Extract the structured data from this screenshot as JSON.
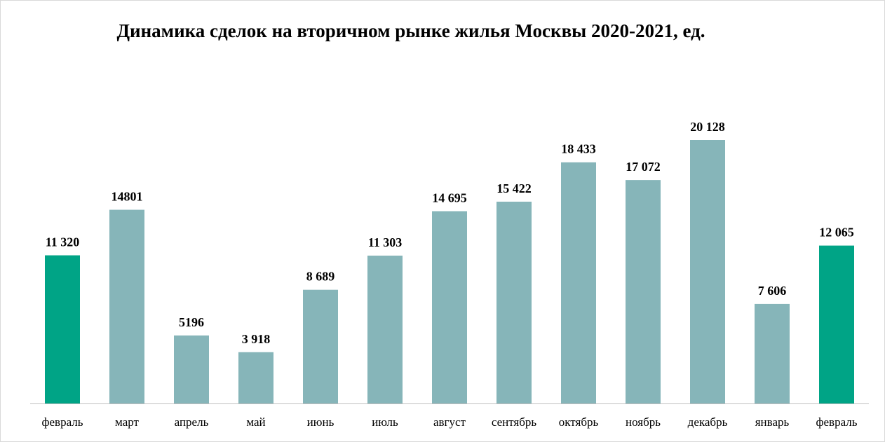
{
  "chart_data": {
    "type": "bar",
    "title": "Динамика сделок на вторичном рынке жилья Москвы 2020-2021, ед.",
    "categories": [
      "февраль",
      "март",
      "апрель",
      "май",
      "июнь",
      "июль",
      "август",
      "сентябрь",
      "октябрь",
      "ноябрь",
      "декабрь",
      "январь",
      "февраль"
    ],
    "values": [
      11320,
      14801,
      5196,
      3918,
      8689,
      11303,
      14695,
      15422,
      18433,
      17072,
      20128,
      7606,
      12065
    ],
    "data_labels": [
      "11 320",
      "14801",
      "5196",
      "3 918",
      "8 689",
      "11 303",
      "14 695",
      "15 422",
      "18 433",
      "17 072",
      "20 128",
      "7 606",
      "12 065"
    ],
    "highlight_indices": [
      0,
      12
    ],
    "colors": {
      "default": "#86b5b9",
      "highlight": "#00a486",
      "axis": "#bfbfbf"
    },
    "ylim": [
      0,
      20128
    ],
    "grid": false,
    "legend": "none"
  }
}
